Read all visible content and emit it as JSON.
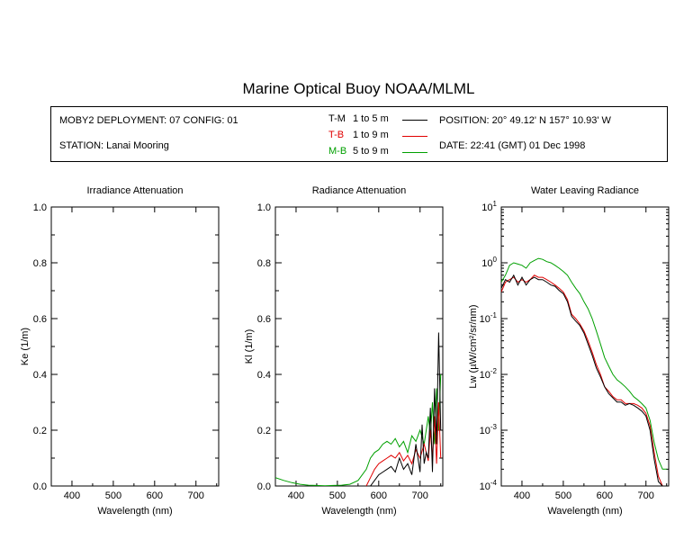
{
  "page": {
    "title": "Marine Optical Buoy NOAA/MLML"
  },
  "info": {
    "deployment": "MOBY2 DEPLOYMENT: 07 CONFIG: 01",
    "station": "STATION: Lanai Mooring",
    "position": "POSITION: 20° 49.12' N   157° 10.93' W",
    "date": "DATE: 22:41 (GMT) 01 Dec 1998",
    "legend": [
      {
        "code": "T-M",
        "range": "1 to 5  m",
        "color": "#000000"
      },
      {
        "code": "T-B",
        "range": "1 to 9  m",
        "color": "#e00000"
      },
      {
        "code": "M-B",
        "range": "5 to 9  m",
        "color": "#00a000"
      }
    ]
  },
  "colors": {
    "T-M": "#000000",
    "T-B": "#e00000",
    "M-B": "#00a000"
  },
  "chart_data": [
    {
      "type": "line",
      "title": "Irradiance Attenuation",
      "xlabel": "Wavelength (nm)",
      "ylabel": "Ke  (1/m)",
      "xlim": [
        350,
        755
      ],
      "ylim": [
        0,
        1
      ],
      "xticks": [
        "400",
        "500",
        "600",
        "700"
      ],
      "yticks": [
        "0.0",
        "0.2",
        "0.4",
        "0.6",
        "0.8",
        "1.0"
      ],
      "series": []
    },
    {
      "type": "line",
      "title": "Radiance Attenuation",
      "xlabel": "Wavelength (nm)",
      "ylabel": "Kl  (1/m)",
      "xlim": [
        350,
        755
      ],
      "ylim": [
        0,
        1
      ],
      "xticks": [
        "400",
        "500",
        "600",
        "700"
      ],
      "yticks": [
        "0.0",
        "0.2",
        "0.4",
        "0.6",
        "0.8",
        "1.0"
      ],
      "series": [
        {
          "name": "M-B",
          "x": [
            350,
            370,
            390,
            410,
            430,
            450,
            470,
            490,
            510,
            530,
            550,
            570,
            580,
            590,
            600,
            610,
            620,
            630,
            640,
            650,
            660,
            670,
            680,
            690,
            700,
            710,
            720,
            725,
            730,
            735,
            740,
            745,
            750
          ],
          "y": [
            0.03,
            0.02,
            0.012,
            0.006,
            0.003,
            0.002,
            0.001,
            0.002,
            0.003,
            0.006,
            0.02,
            0.06,
            0.1,
            0.12,
            0.13,
            0.15,
            0.16,
            0.15,
            0.17,
            0.14,
            0.16,
            0.12,
            0.18,
            0.16,
            0.2,
            0.15,
            0.25,
            0.18,
            0.3,
            0.15,
            0.35,
            0.2,
            0.4
          ]
        },
        {
          "name": "T-B",
          "x": [
            570,
            580,
            590,
            600,
            610,
            620,
            630,
            640,
            650,
            660,
            670,
            680,
            690,
            700,
            710,
            720,
            725,
            730,
            735,
            740,
            745,
            750
          ],
          "y": [
            0.0,
            0.03,
            0.06,
            0.08,
            0.09,
            0.1,
            0.11,
            0.1,
            0.12,
            0.09,
            0.11,
            0.08,
            0.13,
            0.1,
            0.15,
            0.09,
            0.2,
            0.1,
            0.25,
            0.08,
            0.3,
            0.1
          ]
        },
        {
          "name": "T-M",
          "x": [
            580,
            590,
            600,
            610,
            620,
            630,
            640,
            650,
            660,
            670,
            680,
            690,
            700,
            705,
            710,
            715,
            720,
            725,
            730,
            735,
            740,
            745,
            750
          ],
          "y": [
            0.0,
            0.02,
            0.04,
            0.05,
            0.06,
            0.07,
            0.05,
            0.1,
            0.06,
            0.08,
            0.04,
            0.15,
            0.05,
            0.22,
            0.08,
            0.12,
            0.1,
            0.28,
            0.05,
            0.35,
            0.15,
            0.55,
            0.2
          ]
        }
      ]
    },
    {
      "type": "line",
      "title": "Water Leaving Radiance",
      "xlabel": "Wavelength (nm)",
      "ylabel": "Lw  (µW/cm²/sr/nm)",
      "xlim": [
        350,
        755
      ],
      "yscale": "log",
      "ylim": [
        0.0001,
        10
      ],
      "xticks": [
        "400",
        "500",
        "600",
        "700"
      ],
      "yticks": [
        "10⁻⁴",
        "10⁻³",
        "10⁻²",
        "10⁻¹",
        "10⁰",
        "10¹"
      ],
      "series": [
        {
          "name": "M-B",
          "x": [
            350,
            360,
            370,
            380,
            390,
            400,
            410,
            420,
            430,
            440,
            450,
            460,
            470,
            480,
            490,
            500,
            510,
            520,
            530,
            540,
            550,
            560,
            570,
            580,
            590,
            600,
            610,
            620,
            630,
            640,
            650,
            660,
            670,
            680,
            690,
            700,
            710,
            720,
            730,
            740,
            750
          ],
          "y": [
            0.45,
            0.6,
            0.9,
            1.0,
            0.95,
            0.9,
            0.8,
            1.0,
            1.1,
            1.2,
            1.15,
            1.05,
            1.0,
            0.9,
            0.8,
            0.7,
            0.6,
            0.45,
            0.35,
            0.28,
            0.2,
            0.15,
            0.1,
            0.06,
            0.035,
            0.02,
            0.014,
            0.01,
            0.008,
            0.007,
            0.006,
            0.005,
            0.004,
            0.0035,
            0.003,
            0.0025,
            0.0015,
            0.0006,
            0.0003,
            0.0002,
            0.0002
          ]
        },
        {
          "name": "T-B",
          "x": [
            350,
            360,
            370,
            380,
            390,
            400,
            410,
            420,
            430,
            440,
            450,
            460,
            470,
            480,
            490,
            500,
            510,
            520,
            530,
            540,
            550,
            560,
            570,
            580,
            590,
            600,
            610,
            620,
            630,
            640,
            650,
            660,
            670,
            680,
            690,
            700,
            710,
            720,
            730,
            740
          ],
          "y": [
            0.3,
            0.45,
            0.5,
            0.55,
            0.45,
            0.5,
            0.45,
            0.5,
            0.6,
            0.55,
            0.55,
            0.5,
            0.45,
            0.4,
            0.35,
            0.3,
            0.22,
            0.12,
            0.1,
            0.08,
            0.06,
            0.04,
            0.025,
            0.015,
            0.01,
            0.006,
            0.005,
            0.004,
            0.0035,
            0.0035,
            0.003,
            0.003,
            0.003,
            0.0028,
            0.0025,
            0.002,
            0.0012,
            0.0004,
            0.00015,
            0.0001
          ]
        },
        {
          "name": "T-M",
          "x": [
            350,
            360,
            370,
            380,
            390,
            400,
            410,
            420,
            430,
            440,
            450,
            460,
            470,
            480,
            490,
            500,
            510,
            520,
            530,
            540,
            550,
            560,
            570,
            580,
            590,
            600,
            610,
            620,
            630,
            640,
            650,
            660,
            670,
            680,
            690,
            700,
            710,
            720,
            730,
            740
          ],
          "y": [
            0.35,
            0.5,
            0.45,
            0.6,
            0.4,
            0.55,
            0.4,
            0.5,
            0.55,
            0.5,
            0.5,
            0.45,
            0.4,
            0.38,
            0.32,
            0.28,
            0.2,
            0.11,
            0.09,
            0.075,
            0.055,
            0.035,
            0.022,
            0.013,
            0.009,
            0.006,
            0.0045,
            0.0038,
            0.0032,
            0.0032,
            0.0028,
            0.003,
            0.0028,
            0.0025,
            0.0022,
            0.0018,
            0.001,
            0.0003,
            0.00012,
            0.0001
          ]
        }
      ]
    }
  ]
}
